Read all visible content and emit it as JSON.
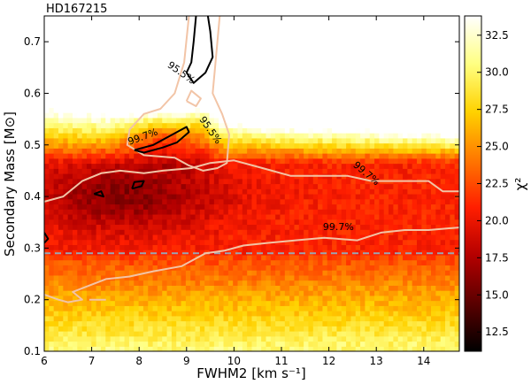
{
  "chart_data": {
    "type": "heatmap",
    "title": "HD167215",
    "xlabel": "FWHM2 [km s⁻¹]",
    "ylabel": "Secondary Mass [M⊙]",
    "xlim": [
      6,
      14.75
    ],
    "ylim": [
      0.1,
      0.75
    ],
    "x_ticks": [
      6,
      7,
      8,
      9,
      10,
      11,
      12,
      13,
      14
    ],
    "y_ticks": [
      0.1,
      0.2,
      0.3,
      0.4,
      0.5,
      0.6,
      0.7
    ],
    "colorbar": {
      "label": "χ²",
      "range": [
        11.2,
        33.8
      ],
      "ticks": [
        12.5,
        15.0,
        17.5,
        20.0,
        22.5,
        25.0,
        27.5,
        30.0,
        32.5
      ],
      "colormap": "afmhot",
      "colors": [
        "#000000",
        "#5a0000",
        "#b40000",
        "#ff1e00",
        "#ff7800",
        "#ffd200",
        "#ffff82",
        "#ffffff"
      ]
    },
    "reference_line": {
      "y": 0.29,
      "style": "dashed",
      "color": "#9aa6b2"
    },
    "contours": [
      {
        "label": "95.5%",
        "color": "#f2c4a6",
        "segments": [
          [
            [
              9.05,
              0.75
            ],
            [
              8.95,
              0.66
            ],
            [
              8.75,
              0.6
            ],
            [
              8.45,
              0.57
            ],
            [
              8.1,
              0.56
            ],
            [
              7.8,
              0.53
            ],
            [
              7.75,
              0.5
            ],
            [
              8.1,
              0.48
            ],
            [
              8.75,
              0.475
            ],
            [
              9.05,
              0.46
            ],
            [
              9.35,
              0.45
            ],
            [
              9.65,
              0.455
            ],
            [
              9.85,
              0.465
            ],
            [
              9.9,
              0.52
            ],
            [
              9.75,
              0.56
            ],
            [
              9.55,
              0.6
            ],
            [
              9.6,
              0.65
            ],
            [
              9.7,
              0.75
            ]
          ],
          [
            [
              9.0,
              0.585
            ],
            [
              9.2,
              0.575
            ],
            [
              9.3,
              0.59
            ],
            [
              9.1,
              0.605
            ],
            [
              9.0,
              0.585
            ]
          ]
        ]
      },
      {
        "label": "99.7%",
        "color": "#f2c4a6",
        "segments": [
          [
            [
              6.0,
              0.39
            ],
            [
              6.4,
              0.4
            ],
            [
              6.8,
              0.43
            ],
            [
              7.2,
              0.445
            ],
            [
              7.6,
              0.45
            ],
            [
              8.1,
              0.445
            ],
            [
              8.5,
              0.45
            ],
            [
              9.1,
              0.455
            ],
            [
              9.5,
              0.465
            ],
            [
              10.0,
              0.47
            ],
            [
              10.6,
              0.455
            ],
            [
              11.2,
              0.44
            ],
            [
              11.7,
              0.44
            ],
            [
              12.4,
              0.44
            ],
            [
              12.9,
              0.43
            ],
            [
              13.5,
              0.43
            ],
            [
              14.1,
              0.43
            ],
            [
              14.4,
              0.41
            ],
            [
              14.75,
              0.41
            ]
          ],
          [
            [
              6.0,
              0.21
            ],
            [
              6.3,
              0.2
            ],
            [
              6.5,
              0.195
            ],
            [
              6.8,
              0.2
            ],
            [
              6.6,
              0.215
            ],
            [
              7.3,
              0.24
            ],
            [
              7.8,
              0.245
            ],
            [
              8.3,
              0.255
            ],
            [
              8.9,
              0.265
            ],
            [
              9.4,
              0.29
            ],
            [
              9.8,
              0.295
            ],
            [
              10.2,
              0.305
            ],
            [
              10.7,
              0.31
            ],
            [
              11.3,
              0.315
            ],
            [
              11.9,
              0.32
            ],
            [
              12.6,
              0.315
            ],
            [
              13.1,
              0.33
            ],
            [
              13.6,
              0.335
            ],
            [
              14.1,
              0.335
            ],
            [
              14.75,
              0.34
            ]
          ],
          [
            [
              6.95,
              0.2
            ],
            [
              7.2,
              0.2
            ],
            [
              7.3,
              0.2
            ]
          ]
        ]
      },
      {
        "label": "99.7%",
        "color": "#000000",
        "segments": [
          [
            [
              9.2,
              0.75
            ],
            [
              9.15,
              0.7
            ],
            [
              9.1,
              0.66
            ],
            [
              9.0,
              0.64
            ],
            [
              9.15,
              0.62
            ],
            [
              9.4,
              0.64
            ],
            [
              9.55,
              0.67
            ],
            [
              9.5,
              0.72
            ],
            [
              9.45,
              0.75
            ]
          ],
          [
            [
              7.9,
              0.49
            ],
            [
              8.3,
              0.5
            ],
            [
              8.7,
              0.52
            ],
            [
              9.0,
              0.535
            ],
            [
              9.05,
              0.525
            ],
            [
              8.8,
              0.505
            ],
            [
              8.5,
              0.495
            ],
            [
              8.1,
              0.485
            ],
            [
              7.9,
              0.49
            ]
          ],
          [
            [
              7.05,
              0.405
            ],
            [
              7.25,
              0.4
            ],
            [
              7.2,
              0.41
            ],
            [
              7.05,
              0.405
            ]
          ],
          [
            [
              7.85,
              0.415
            ],
            [
              8.05,
              0.42
            ],
            [
              8.1,
              0.43
            ],
            [
              7.9,
              0.428
            ],
            [
              7.85,
              0.415
            ]
          ],
          [
            [
              6.0,
              0.33
            ],
            [
              6.08,
              0.318
            ],
            [
              6.0,
              0.31
            ]
          ]
        ]
      }
    ],
    "contour_labels": [
      {
        "text": "95.5%",
        "x": 8.85,
        "y": 0.635,
        "angle": 35,
        "color": "#000000"
      },
      {
        "text": "95.5%",
        "x": 9.45,
        "y": 0.525,
        "angle": 55,
        "color": "#000000"
      },
      {
        "text": "99.7%",
        "x": 8.1,
        "y": 0.51,
        "angle": -20,
        "color": "#000000"
      },
      {
        "text": "99.7%",
        "x": 12.75,
        "y": 0.44,
        "angle": 40,
        "color": "#000000"
      },
      {
        "text": "99.7%",
        "x": 12.2,
        "y": 0.335,
        "angle": 0,
        "color": "#000000"
      }
    ]
  }
}
